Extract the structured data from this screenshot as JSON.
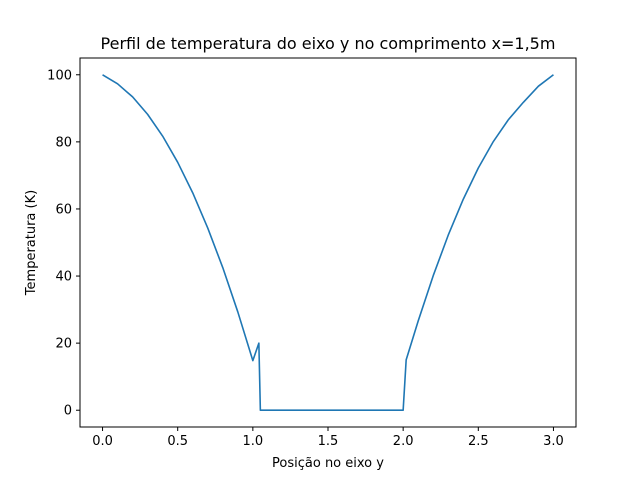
{
  "chart_data": {
    "type": "line",
    "title": "Perfil de temperatura do eixo y no comprimento x=1,5m",
    "xlabel": "Posição no eixo y",
    "ylabel": "Temperatura (K)",
    "xlim": [
      -0.15,
      3.15
    ],
    "ylim": [
      -5,
      105
    ],
    "xticks": [
      0.0,
      0.5,
      1.0,
      1.5,
      2.0,
      2.5,
      3.0
    ],
    "xtick_labels": [
      "0.0",
      "0.5",
      "1.0",
      "1.5",
      "2.0",
      "2.5",
      "3.0"
    ],
    "yticks": [
      0,
      20,
      40,
      60,
      80,
      100
    ],
    "ytick_labels": [
      "0",
      "20",
      "40",
      "60",
      "80",
      "100"
    ],
    "grid": false,
    "series": [
      {
        "color": "#1f77b4",
        "x": [
          0.0,
          0.1,
          0.2,
          0.3,
          0.4,
          0.5,
          0.6,
          0.7,
          0.8,
          0.9,
          1.0,
          1.04,
          1.05,
          1.5,
          1.98,
          2.0,
          2.02,
          2.1,
          2.2,
          2.3,
          2.4,
          2.5,
          2.6,
          2.7,
          2.8,
          2.9,
          3.0
        ],
        "y": [
          100,
          97.3,
          93.4,
          88.2,
          81.7,
          73.9,
          64.8,
          54.3,
          42.5,
          29.3,
          14.8,
          20,
          0,
          0,
          0,
          0,
          15,
          26.6,
          40.1,
          52.2,
          62.9,
          72.2,
          80.1,
          86.6,
          91.8,
          96.6,
          100
        ]
      }
    ]
  }
}
